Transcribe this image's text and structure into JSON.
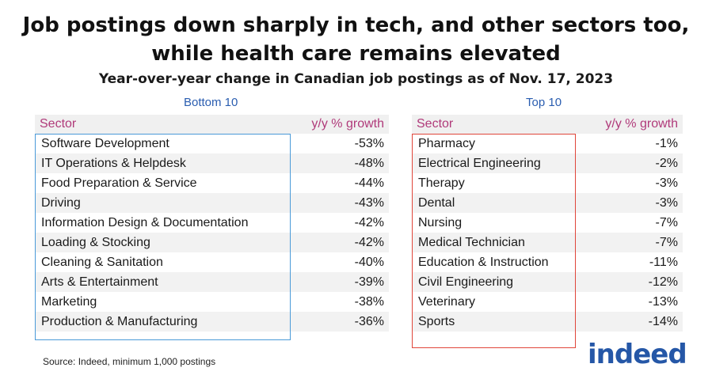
{
  "chart_data": {
    "type": "table",
    "title": "Job postings down sharply in tech, and other sectors too, while health care remains elevated",
    "subtitle": "Year-over-year change in Canadian job postings as of Nov. 17, 2023",
    "tables": [
      {
        "label": "Bottom 10",
        "columns": [
          "Sector",
          "y/y  % growth"
        ],
        "rows": [
          {
            "sector": "Software Development",
            "value": "-53%"
          },
          {
            "sector": "IT Operations & Helpdesk",
            "value": "-48%"
          },
          {
            "sector": "Food Preparation & Service",
            "value": "-44%"
          },
          {
            "sector": "Driving",
            "value": "-43%"
          },
          {
            "sector": "Information Design & Documentation",
            "value": "-42%"
          },
          {
            "sector": "Loading & Stocking",
            "value": "-42%"
          },
          {
            "sector": "Cleaning & Sanitation",
            "value": "-40%"
          },
          {
            "sector": "Arts & Entertainment",
            "value": "-39%"
          },
          {
            "sector": "Marketing",
            "value": "-38%"
          },
          {
            "sector": "Production & Manufacturing",
            "value": "-36%"
          }
        ],
        "box_color": "#4a9ad8"
      },
      {
        "label": "Top 10",
        "columns": [
          "Sector",
          "y/y  % growth"
        ],
        "rows": [
          {
            "sector": "Pharmacy",
            "value": "-1%"
          },
          {
            "sector": "Electrical Engineering",
            "value": "-2%"
          },
          {
            "sector": "Therapy",
            "value": "-3%"
          },
          {
            "sector": "Dental",
            "value": "-3%"
          },
          {
            "sector": "Nursing",
            "value": "-7%"
          },
          {
            "sector": "Medical Technician",
            "value": "-7%"
          },
          {
            "sector": "Education & Instruction",
            "value": "-11%"
          },
          {
            "sector": "Civil Engineering",
            "value": "-12%"
          },
          {
            "sector": "Veterinary",
            "value": "-13%"
          },
          {
            "sector": "Sports",
            "value": "-14%"
          }
        ],
        "box_color": "#e0463a"
      }
    ],
    "source": "Source: Indeed, minimum 1,000 postings",
    "logo": "indeed"
  }
}
